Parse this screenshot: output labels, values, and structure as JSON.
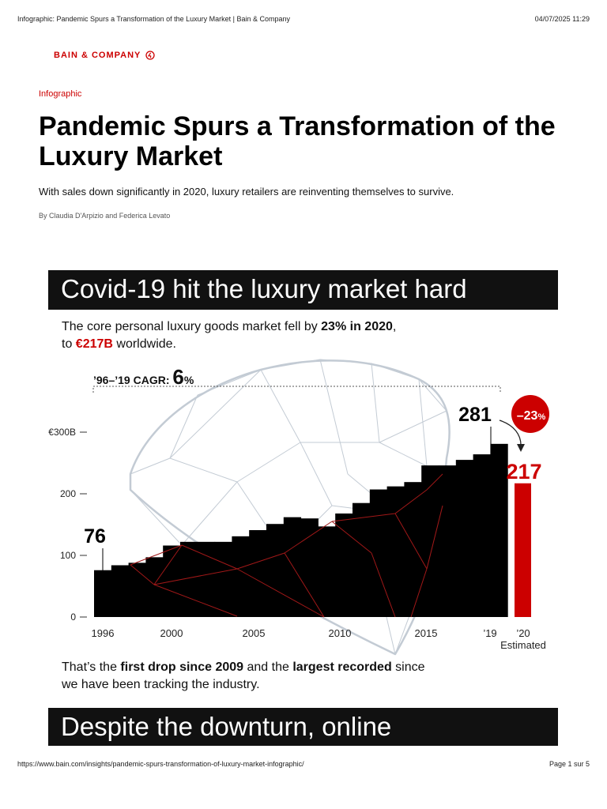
{
  "print_header": {
    "title": "Infographic: Pandemic Spurs a Transformation of the Luxury Market | Bain & Company",
    "datetime": "04/07/2025 11:29"
  },
  "logo": {
    "text": "BAIN & COMPANY"
  },
  "article": {
    "category": "Infographic",
    "title": "Pandemic Spurs a Transformation of the Luxury Market",
    "subtitle": "With sales down significantly in 2020, luxury retailers are reinventing themselves to survive.",
    "byline": "By Claudia D'Arpizio and Federica Levato"
  },
  "section1": {
    "banner": "Covid-19 hit the luxury market hard",
    "intro": {
      "p1": "The core personal luxury goods market fell by ",
      "p1_bold": "23% in 2020",
      "p1_end": ",",
      "p2": "to ",
      "p2_red": "€217B",
      "p2_end": " worldwide."
    },
    "caption": {
      "c1": "That’s the ",
      "c1_bold": "first drop since 2009",
      "c2": " and the ",
      "c2_bold": "largest recorded",
      "c3": " since",
      "c4": "we have been tracking the industry."
    }
  },
  "section2": {
    "banner": "Despite the downturn, online"
  },
  "chart_data": {
    "type": "bar",
    "unit": "€B",
    "categories": [
      "1996",
      "1997",
      "1998",
      "1999",
      "2000",
      "2001",
      "2002",
      "2003",
      "2004",
      "2005",
      "2006",
      "2007",
      "2008",
      "2009",
      "2010",
      "2011",
      "2012",
      "2013",
      "2014",
      "2015",
      "2016",
      "2017",
      "2018",
      "2019",
      "2020"
    ],
    "values": [
      76,
      84,
      88,
      97,
      116,
      122,
      122,
      122,
      131,
      141,
      151,
      162,
      160,
      147,
      168,
      185,
      207,
      212,
      219,
      246,
      246,
      255,
      264,
      281,
      217
    ],
    "highlight": {
      "category": "2020",
      "color": "#cc0000"
    },
    "bar_color": "#000000",
    "x_tick_labels": [
      "1996",
      "2000",
      "2005",
      "2010",
      "2015",
      "’19",
      "’20"
    ],
    "x_estimated_note": "Estimated",
    "y_ticks": [
      {
        "value": 0,
        "label": "0"
      },
      {
        "value": 100,
        "label": "100"
      },
      {
        "value": 200,
        "label": "200"
      },
      {
        "value": 300,
        "label": "€300B"
      }
    ],
    "ylim": [
      0,
      300
    ],
    "cagr": {
      "prefix": "’96–’19 CAGR:",
      "value": "6",
      "suffix": "%"
    },
    "labels": {
      "start": "76",
      "peak": "281",
      "end": "217"
    },
    "change_badge": {
      "value": "–23",
      "suffix": "%",
      "color": "#cc0000"
    }
  },
  "print_footer": {
    "url": "https://www.bain.com/insights/pandemic-spurs-transformation-of-luxury-market-infographic/",
    "page": "Page 1 sur 5"
  }
}
